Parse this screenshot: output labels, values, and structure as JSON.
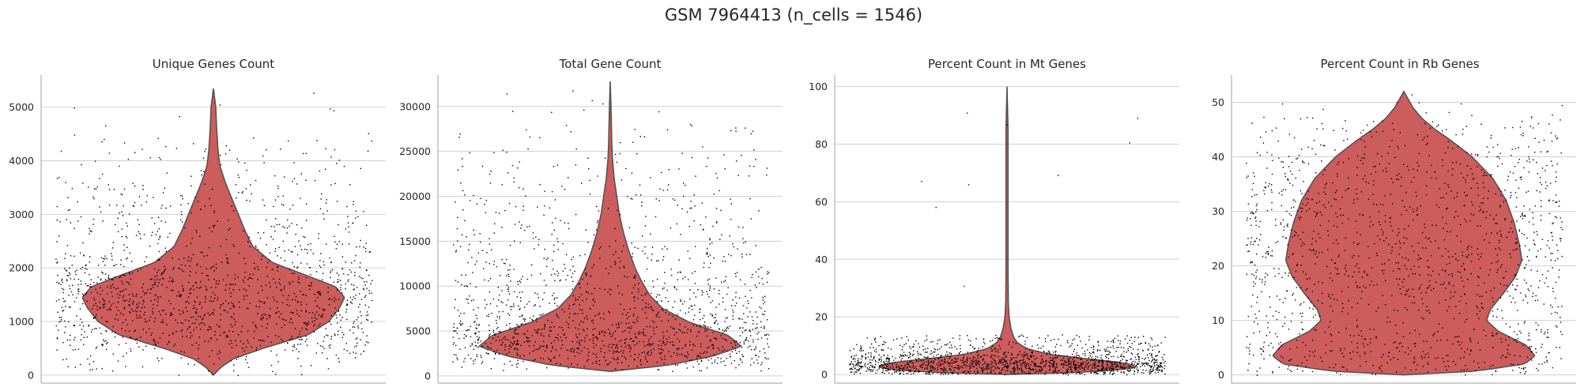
{
  "figure": {
    "suptitle": "GSM 7964413 (n_cells = 1546)",
    "violin_color": "#cd5c5c",
    "outline_color": "#505050",
    "point_color": "#000000",
    "grid_color": "#d0d0d0"
  },
  "chart_data": [
    {
      "type": "violin",
      "title": "Unique Genes Count",
      "xlabel": "",
      "ylabel": "",
      "ylim": [
        -150,
        5600
      ],
      "yticks": [
        0,
        1000,
        2000,
        3000,
        4000,
        5000
      ],
      "grid": true,
      "n_points": 1546,
      "data_range": [
        0,
        5350
      ],
      "jitter_range": [
        0,
        4450
      ],
      "density": [
        [
          0,
          0.0
        ],
        [
          150,
          0.06
        ],
        [
          300,
          0.15
        ],
        [
          500,
          0.38
        ],
        [
          750,
          0.72
        ],
        [
          1000,
          0.88
        ],
        [
          1250,
          0.96
        ],
        [
          1450,
          1.0
        ],
        [
          1650,
          0.93
        ],
        [
          1850,
          0.72
        ],
        [
          2100,
          0.45
        ],
        [
          2400,
          0.3
        ],
        [
          2700,
          0.24
        ],
        [
          3000,
          0.19
        ],
        [
          3300,
          0.14
        ],
        [
          3600,
          0.09
        ],
        [
          3900,
          0.05
        ],
        [
          4200,
          0.035
        ],
        [
          4600,
          0.025
        ],
        [
          5000,
          0.018
        ],
        [
          5350,
          0.0
        ]
      ]
    },
    {
      "type": "violin",
      "title": "Total Gene Count",
      "xlabel": "",
      "ylabel": "",
      "ylim": [
        -800,
        33500
      ],
      "yticks": [
        0,
        5000,
        10000,
        15000,
        20000,
        25000,
        30000
      ],
      "grid": true,
      "n_points": 1546,
      "data_range": [
        500,
        32800
      ],
      "jitter_range": [
        500,
        28000
      ],
      "density": [
        [
          500,
          0.0
        ],
        [
          1200,
          0.45
        ],
        [
          2200,
          0.78
        ],
        [
          3300,
          1.0
        ],
        [
          4500,
          0.9
        ],
        [
          6000,
          0.6
        ],
        [
          7500,
          0.4
        ],
        [
          9000,
          0.3
        ],
        [
          10500,
          0.24
        ],
        [
          12000,
          0.19
        ],
        [
          14000,
          0.14
        ],
        [
          16000,
          0.1
        ],
        [
          18000,
          0.07
        ],
        [
          20000,
          0.05
        ],
        [
          22000,
          0.03
        ],
        [
          24000,
          0.018
        ],
        [
          26000,
          0.012
        ],
        [
          28000,
          0.009
        ],
        [
          30000,
          0.006
        ],
        [
          32800,
          0.0
        ]
      ]
    },
    {
      "type": "violin",
      "title": "Percent Count in Mt Genes",
      "xlabel": "",
      "ylabel": "",
      "ylim": [
        -3,
        104
      ],
      "yticks": [
        0,
        20,
        40,
        60,
        80,
        100
      ],
      "grid": true,
      "n_points": 1546,
      "data_range": [
        0,
        100
      ],
      "jitter_range": [
        0,
        14
      ],
      "density": [
        [
          0,
          0.0
        ],
        [
          0.5,
          0.45
        ],
        [
          1.5,
          0.85
        ],
        [
          2.7,
          1.0
        ],
        [
          4,
          0.9
        ],
        [
          5.5,
          0.6
        ],
        [
          7,
          0.32
        ],
        [
          9,
          0.15
        ],
        [
          11,
          0.08
        ],
        [
          13,
          0.05
        ],
        [
          16,
          0.03
        ],
        [
          20,
          0.016
        ],
        [
          25,
          0.01
        ],
        [
          35,
          0.008
        ],
        [
          50,
          0.008
        ],
        [
          70,
          0.008
        ],
        [
          85,
          0.008
        ],
        [
          100,
          0.0
        ]
      ]
    },
    {
      "type": "violin",
      "title": "Percent Count in Rb Genes",
      "xlabel": "",
      "ylabel": "",
      "ylim": [
        -1.5,
        55
      ],
      "yticks": [
        0,
        10,
        20,
        30,
        40,
        50
      ],
      "grid": true,
      "n_points": 1546,
      "data_range": [
        0,
        52
      ],
      "jitter_range": [
        0,
        48
      ],
      "density": [
        [
          0,
          0.0
        ],
        [
          0.7,
          0.55
        ],
        [
          2,
          0.92
        ],
        [
          3.5,
          1.0
        ],
        [
          5.5,
          0.93
        ],
        [
          8,
          0.72
        ],
        [
          10,
          0.63
        ],
        [
          12,
          0.66
        ],
        [
          15,
          0.76
        ],
        [
          18,
          0.85
        ],
        [
          21,
          0.9
        ],
        [
          24,
          0.88
        ],
        [
          28,
          0.84
        ],
        [
          32,
          0.78
        ],
        [
          36,
          0.68
        ],
        [
          40,
          0.52
        ],
        [
          43,
          0.36
        ],
        [
          45,
          0.24
        ],
        [
          47,
          0.14
        ],
        [
          49,
          0.07
        ],
        [
          50.5,
          0.035
        ],
        [
          52,
          0.0
        ]
      ]
    }
  ]
}
